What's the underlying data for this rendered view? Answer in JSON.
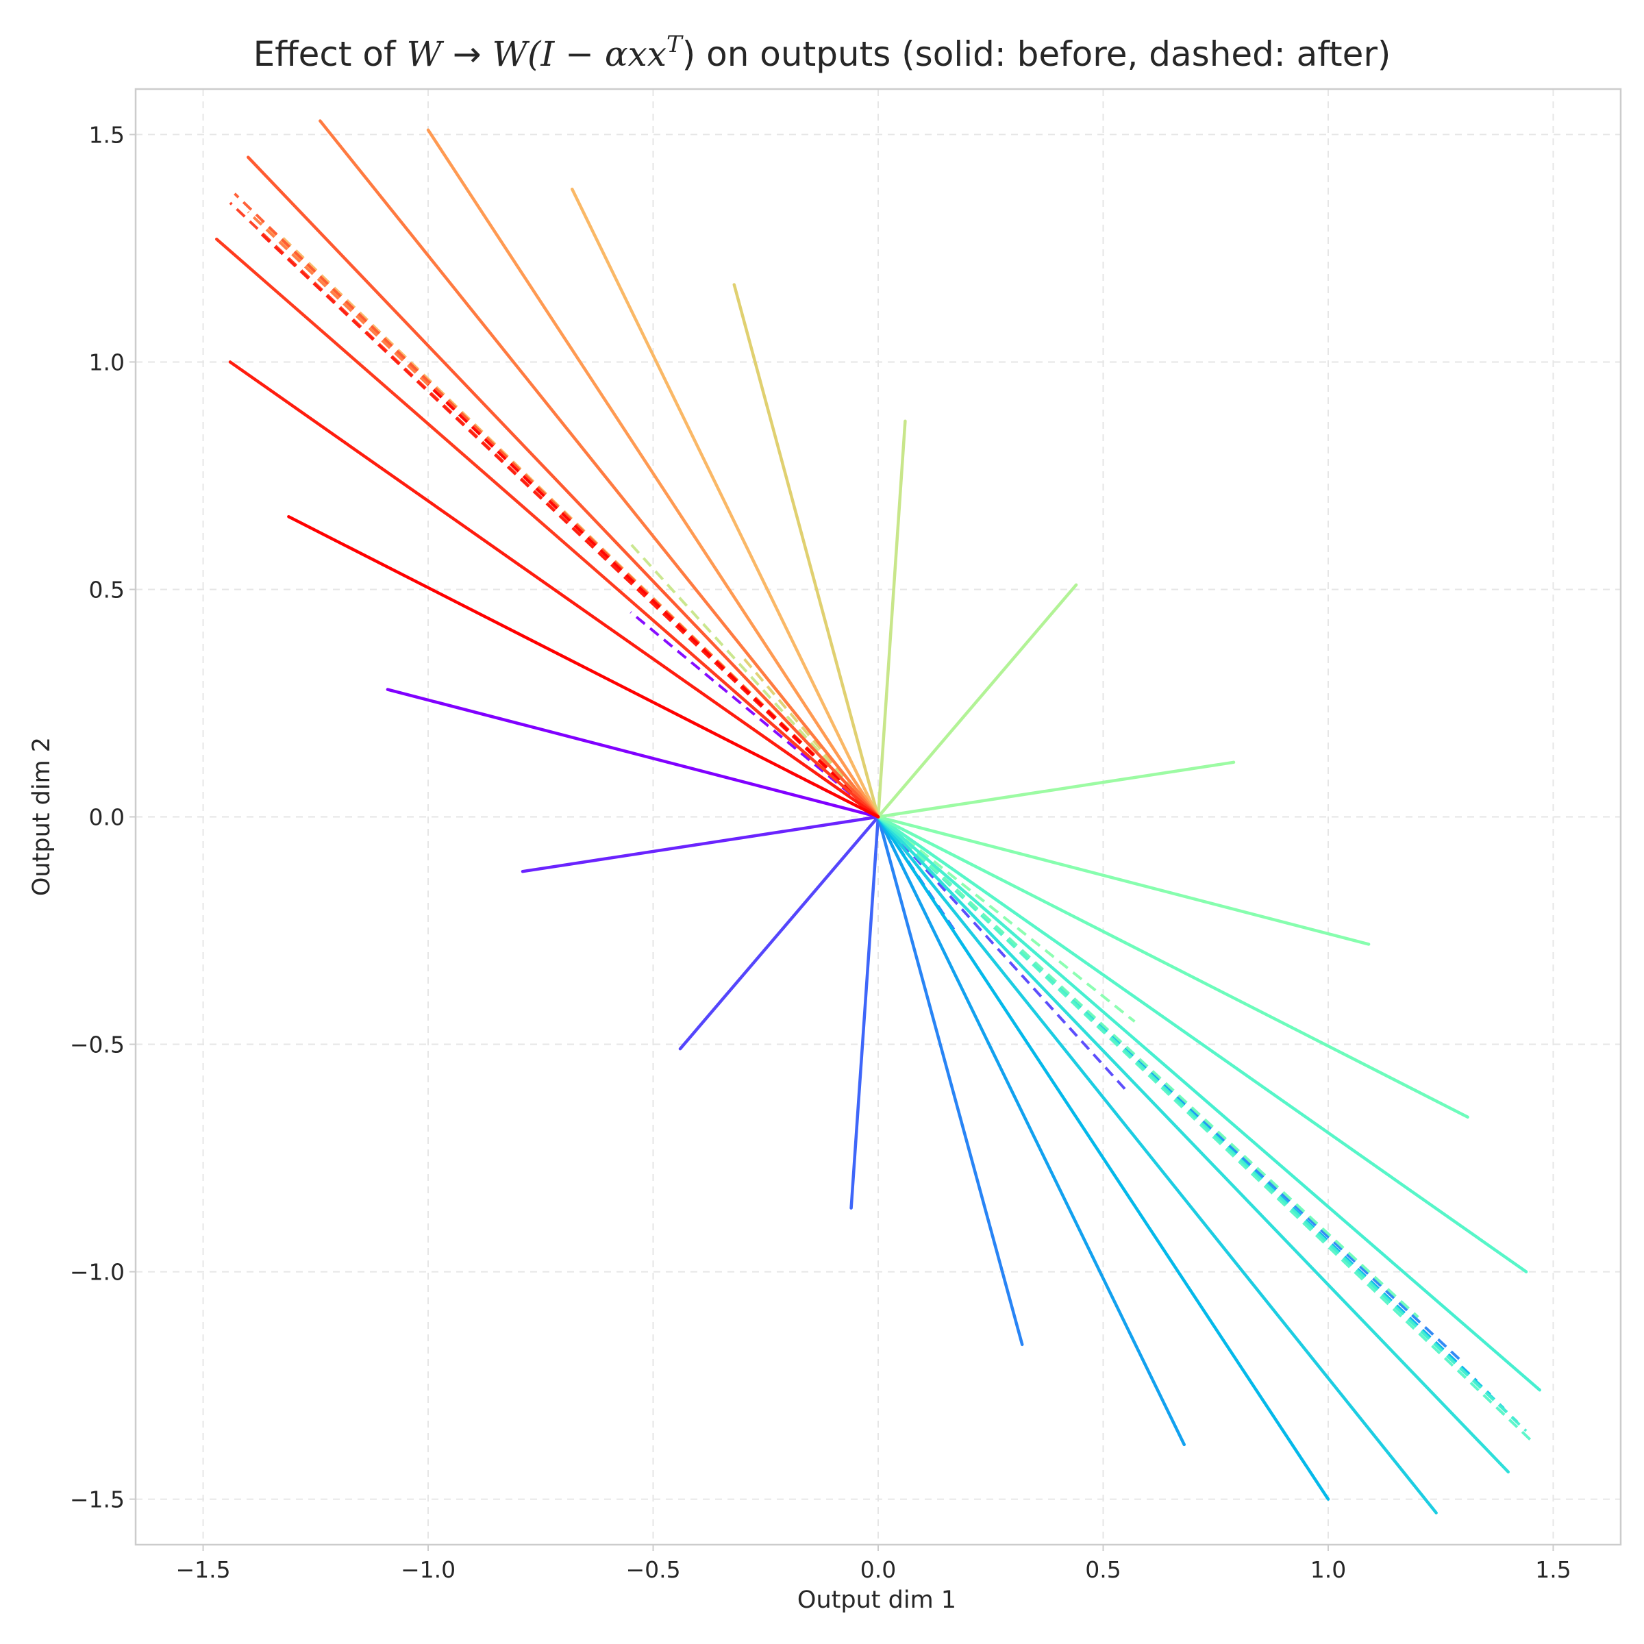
{
  "chart_data": {
    "type": "line",
    "title": {
      "prefix": "Effect of ",
      "math_lhs": "W",
      "arrow": " → ",
      "math_rhs": "W(I − αxx",
      "superscript": "T",
      "suffix": ") on outputs (solid: before, dashed: after)"
    },
    "xlabel": "Output dim 1",
    "ylabel": "Output dim 2",
    "xlim": [
      -1.65,
      1.65
    ],
    "ylim": [
      -1.6,
      1.6
    ],
    "xticks": [
      -1.5,
      -1.0,
      -0.5,
      0.0,
      0.5,
      1.0,
      1.5
    ],
    "yticks": [
      -1.5,
      -1.0,
      -0.5,
      0.0,
      0.5,
      1.0,
      1.5
    ],
    "xtick_labels": [
      "−1.5",
      "−1.0",
      "−0.5",
      "0.0",
      "0.5",
      "1.0",
      "1.5"
    ],
    "ytick_labels": [
      "−1.5",
      "−1.0",
      "−0.5",
      "0.0",
      "0.5",
      "1.0",
      "1.5"
    ],
    "grid": true,
    "colormap": "rainbow",
    "origin": [
      0,
      0
    ],
    "before_solid": [
      {
        "color": "#8000ff",
        "x": -1.09,
        "y": 0.28
      },
      {
        "color": "#6a23fe",
        "x": -0.79,
        "y": -0.12
      },
      {
        "color": "#5445fc",
        "x": -0.44,
        "y": -0.51
      },
      {
        "color": "#3e66f9",
        "x": -0.06,
        "y": -0.86
      },
      {
        "color": "#2884f5",
        "x": 0.32,
        "y": -1.16
      },
      {
        "color": "#12a1ef",
        "x": 0.68,
        "y": -1.38
      },
      {
        "color": "#04b9ea",
        "x": 1.0,
        "y": -1.5
      },
      {
        "color": "#1ccde2",
        "x": 1.24,
        "y": -1.53
      },
      {
        "color": "#2edfda",
        "x": 1.4,
        "y": -1.44
      },
      {
        "color": "#46efd0",
        "x": 1.47,
        "y": -1.26
      },
      {
        "color": "#56f6c8",
        "x": 1.44,
        "y": -1.0
      },
      {
        "color": "#6cfcbb",
        "x": 1.31,
        "y": -0.66
      },
      {
        "color": "#86feae",
        "x": 1.09,
        "y": -0.28
      },
      {
        "color": "#9cfba3",
        "x": 0.79,
        "y": 0.12
      },
      {
        "color": "#b2f396",
        "x": 0.44,
        "y": 0.51
      },
      {
        "color": "#c8e68a",
        "x": 0.06,
        "y": 0.87
      },
      {
        "color": "#e0d070",
        "x": -0.32,
        "y": 1.17
      },
      {
        "color": "#fab866",
        "x": -0.68,
        "y": 1.38
      },
      {
        "color": "#ff9a52",
        "x": -1.0,
        "y": 1.51
      },
      {
        "color": "#ff7a40",
        "x": -1.24,
        "y": 1.53
      },
      {
        "color": "#ff5a30",
        "x": -1.4,
        "y": 1.45
      },
      {
        "color": "#ff3b1e",
        "x": -1.47,
        "y": 1.27
      },
      {
        "color": "#ff1c0e",
        "x": -1.44,
        "y": 1.0
      },
      {
        "color": "#ff0000",
        "x": -1.31,
        "y": 0.66
      }
    ],
    "after_dashed": [
      {
        "color": "#8000ff",
        "x": -0.55,
        "y": 0.45
      },
      {
        "color": "#6a23fe",
        "x": -0.2,
        "y": 0.1
      },
      {
        "color": "#5445fc",
        "x": 0.55,
        "y": -0.6
      },
      {
        "color": "#3e66f9",
        "x": 0.17,
        "y": -0.25
      },
      {
        "color": "#2884f5",
        "x": 1.3,
        "y": -1.2
      },
      {
        "color": "#12a1ef",
        "x": 1.33,
        "y": -1.24
      },
      {
        "color": "#04b9ea",
        "x": 1.36,
        "y": -1.27
      },
      {
        "color": "#1ccde2",
        "x": 1.39,
        "y": -1.3
      },
      {
        "color": "#2edfda",
        "x": 1.42,
        "y": -1.33
      },
      {
        "color": "#46efd0",
        "x": 1.44,
        "y": -1.35
      },
      {
        "color": "#56f6c8",
        "x": 1.45,
        "y": -1.37
      },
      {
        "color": "#6cfcbb",
        "x": 1.2,
        "y": -1.1
      },
      {
        "color": "#86feae",
        "x": 0.57,
        "y": -0.45
      },
      {
        "color": "#c8e68a",
        "x": -0.55,
        "y": 0.6
      },
      {
        "color": "#e0d070",
        "x": -0.3,
        "y": 0.35
      },
      {
        "color": "#fab866",
        "x": -1.33,
        "y": 1.28
      },
      {
        "color": "#ff9a52",
        "x": -1.37,
        "y": 1.31
      },
      {
        "color": "#ff7a40",
        "x": -1.4,
        "y": 1.33
      },
      {
        "color": "#ff5a30",
        "x": -1.43,
        "y": 1.37
      },
      {
        "color": "#ff3b1e",
        "x": -1.44,
        "y": 1.35
      },
      {
        "color": "#ff1c0e",
        "x": -1.38,
        "y": 1.29
      },
      {
        "color": "#ff0000",
        "x": -1.0,
        "y": 0.95
      }
    ]
  }
}
